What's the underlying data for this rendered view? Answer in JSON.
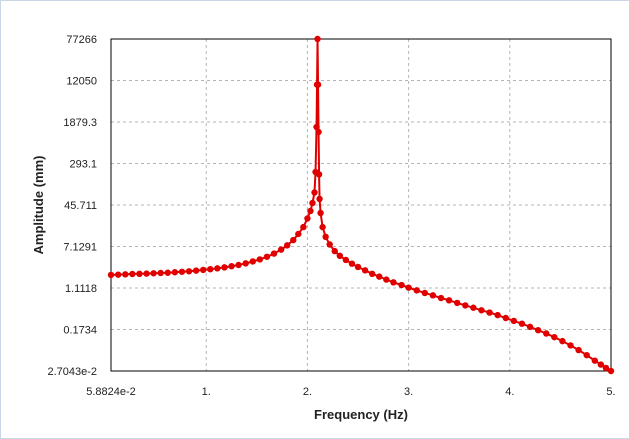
{
  "chart_data": {
    "type": "line",
    "title": "",
    "xlabel": "Frequency (Hz)",
    "ylabel": "Amplitude (mm)",
    "x_scale": "linear",
    "y_scale": "log",
    "xlim": [
      0.058824,
      5.0
    ],
    "ylim": [
      0.027043,
      77266
    ],
    "x_tick_values": [
      0.058824,
      1,
      2,
      3,
      4,
      5
    ],
    "x_tick_labels": [
      "5.8824e-2",
      "1.",
      "2.",
      "3.",
      "4.",
      "5."
    ],
    "y_tick_values": [
      0.027043,
      0.1734,
      1.1118,
      7.1291,
      45.711,
      293.1,
      1879.3,
      12050,
      77266
    ],
    "y_tick_labels": [
      "2.7043e-2",
      "0.1734",
      "1.1118",
      "7.1291",
      "45.711",
      "293.1",
      "1879.3",
      "12050",
      "77266"
    ],
    "grid": true,
    "legend": "none",
    "series": [
      {
        "color": "#e00000",
        "marker": "circle",
        "x": [
          0.058824,
          0.13,
          0.2,
          0.27,
          0.34,
          0.41,
          0.48,
          0.55,
          0.62,
          0.69,
          0.76,
          0.83,
          0.9,
          0.97,
          1.04,
          1.11,
          1.18,
          1.25,
          1.32,
          1.39,
          1.46,
          1.53,
          1.6,
          1.67,
          1.74,
          1.8,
          1.86,
          1.91,
          1.96,
          2.0,
          2.03,
          2.05,
          2.07,
          2.08,
          2.09,
          2.095,
          2.1,
          2.105,
          2.11,
          2.115,
          2.12,
          2.13,
          2.15,
          2.18,
          2.22,
          2.27,
          2.32,
          2.38,
          2.44,
          2.5,
          2.57,
          2.64,
          2.71,
          2.78,
          2.85,
          2.93,
          3.0,
          3.08,
          3.16,
          3.24,
          3.32,
          3.4,
          3.48,
          3.56,
          3.64,
          3.72,
          3.8,
          3.88,
          3.96,
          4.04,
          4.12,
          4.2,
          4.28,
          4.36,
          4.44,
          4.52,
          4.6,
          4.68,
          4.76,
          4.84,
          4.9,
          4.95,
          5.0
        ],
        "y": [
          2.0,
          2.02,
          2.05,
          2.08,
          2.1,
          2.12,
          2.15,
          2.18,
          2.2,
          2.25,
          2.3,
          2.35,
          2.42,
          2.5,
          2.58,
          2.68,
          2.8,
          2.95,
          3.12,
          3.35,
          3.65,
          4.0,
          4.5,
          5.2,
          6.2,
          7.5,
          9.5,
          12.5,
          17.0,
          25.0,
          35.0,
          50.0,
          80.0,
          200.0,
          1500.0,
          10000.0,
          77266.0,
          10000.0,
          1200.0,
          180.0,
          60.0,
          32.0,
          17.0,
          11.0,
          7.8,
          5.8,
          4.7,
          3.9,
          3.3,
          2.85,
          2.45,
          2.1,
          1.85,
          1.62,
          1.43,
          1.27,
          1.13,
          1.0,
          0.89,
          0.8,
          0.71,
          0.64,
          0.57,
          0.51,
          0.46,
          0.41,
          0.37,
          0.33,
          0.29,
          0.255,
          0.225,
          0.195,
          0.168,
          0.145,
          0.123,
          0.103,
          0.085,
          0.069,
          0.055,
          0.043,
          0.036,
          0.031,
          0.027043
        ]
      }
    ]
  }
}
